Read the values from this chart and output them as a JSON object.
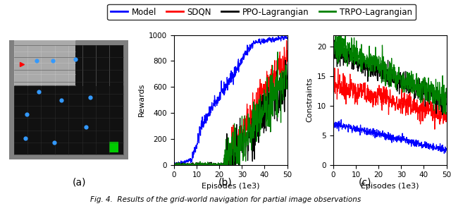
{
  "legend_labels": [
    "Model",
    "SDQN",
    "PPO-Lagrangian",
    "TRPO-Lagrangian"
  ],
  "legend_colors": [
    "#0000FF",
    "#FF0000",
    "#000000",
    "#008000"
  ],
  "episodes": 500,
  "xlabel": "Episodes (1e3)",
  "ylabel_b": "Rewards",
  "ylabel_c": "Constraints",
  "xlim": [
    0,
    50
  ],
  "ylim_b": [
    0,
    1000
  ],
  "ylim_c": [
    0,
    22
  ],
  "xticks": [
    0,
    10,
    20,
    30,
    40,
    50
  ],
  "yticks_b": [
    0,
    200,
    400,
    600,
    800,
    1000
  ],
  "yticks_c": [
    0,
    5,
    10,
    15,
    20
  ],
  "label_a": "(a)",
  "label_b": "(b)",
  "label_c": "(c)",
  "fig_caption": "Fig. 4.  Results of the grid-world navigation for partial image observations",
  "blue_color": "#0000FF",
  "red_color": "#FF0000",
  "black_color": "#000000",
  "green_color": "#008000",
  "bg_outer": "#808080",
  "bg_inner_black": "#111111",
  "bg_gray_partial": "#aaaaaa",
  "grid_line_dark": "#333333",
  "grid_line_light": "#cccccc"
}
